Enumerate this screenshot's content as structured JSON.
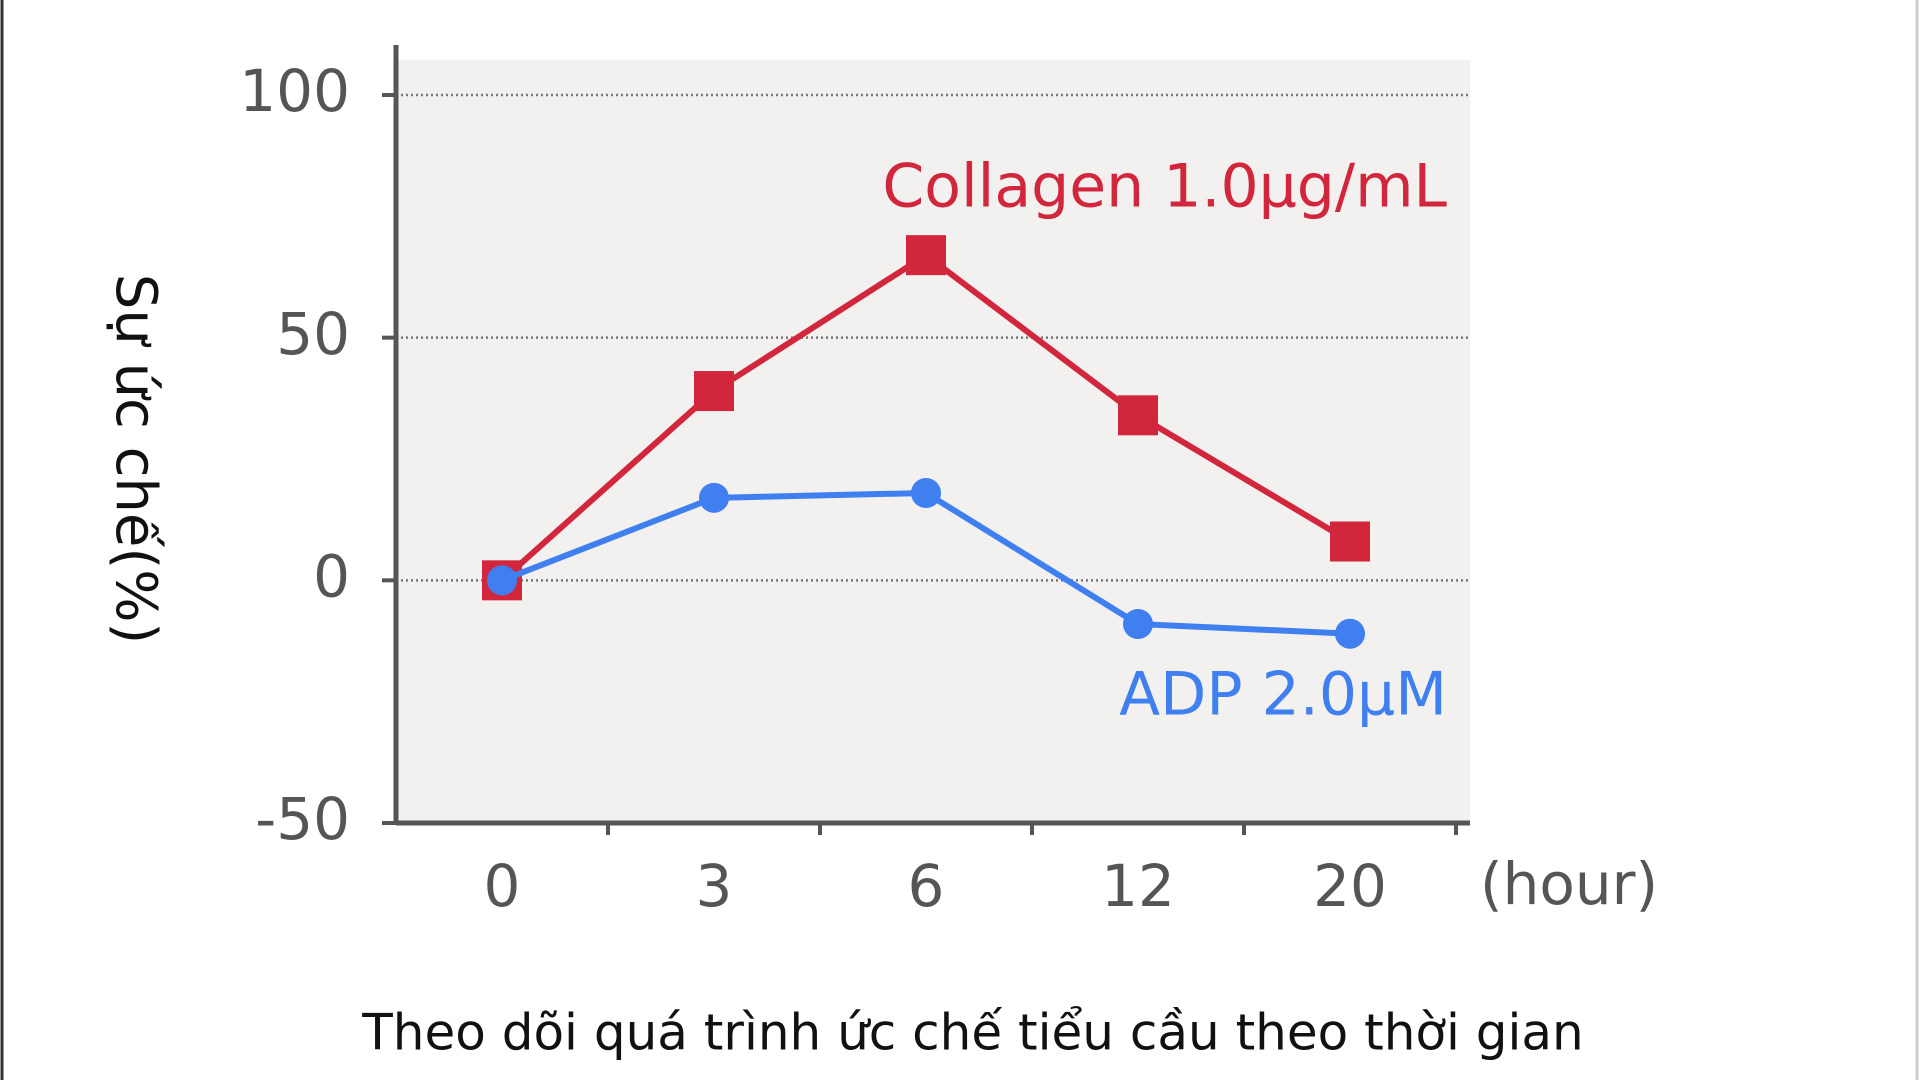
{
  "chart_data": {
    "type": "line",
    "y_label": "Sự ức chế(%)",
    "x_label": "(hour)",
    "caption": "Theo dõi quá trình ức chế tiểu cầu theo thời gian",
    "categories": [
      "0",
      "3",
      "6",
      "12",
      "20"
    ],
    "series": [
      {
        "name": "Collagen 1.0μg/mL",
        "color": "#d1263b",
        "marker": "square",
        "values": [
          0,
          39,
          67,
          34,
          8
        ]
      },
      {
        "name": "ADP 2.0μM",
        "color": "#3f7ff0",
        "marker": "circle",
        "values": [
          0,
          17,
          18,
          -9,
          -11
        ]
      }
    ],
    "ylim": [
      -50,
      100
    ],
    "yticks": [
      -50,
      0,
      50,
      100
    ],
    "grid": true
  }
}
